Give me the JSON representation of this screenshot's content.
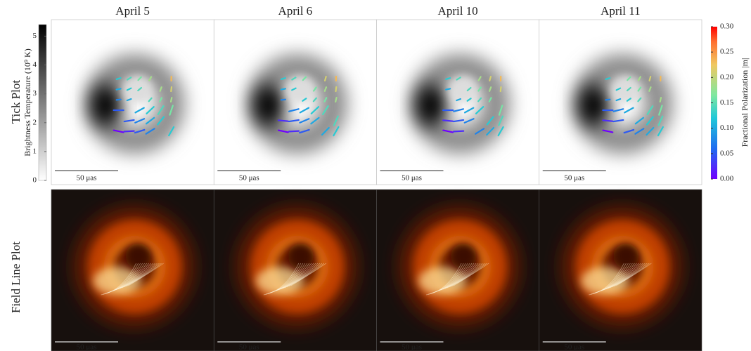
{
  "columns": [
    "April 5",
    "April 6",
    "April 10",
    "April 11"
  ],
  "rows": [
    "Tick Plot",
    "Field Line Plot"
  ],
  "scale_bar_label": "50 μas",
  "left_colorbar": {
    "label": "Brightness Temperature (10⁹ K)",
    "lim": [
      0,
      5.4
    ],
    "ticks": [
      0,
      1,
      2,
      3,
      4,
      5
    ]
  },
  "right_colorbar": {
    "label": "Fractional Polarization |m|",
    "lim": [
      0,
      0.3
    ],
    "ticks": [
      {
        "value": 0,
        "label": "0.00"
      },
      {
        "value": 0.05,
        "label": "0.05"
      },
      {
        "value": 0.1,
        "label": "0.10"
      },
      {
        "value": 0.15,
        "label": "0.15"
      },
      {
        "value": 0.2,
        "label": "0.20"
      },
      {
        "value": 0.25,
        "label": "0.25"
      },
      {
        "value": 0.3,
        "label": "0.30"
      }
    ]
  }
}
